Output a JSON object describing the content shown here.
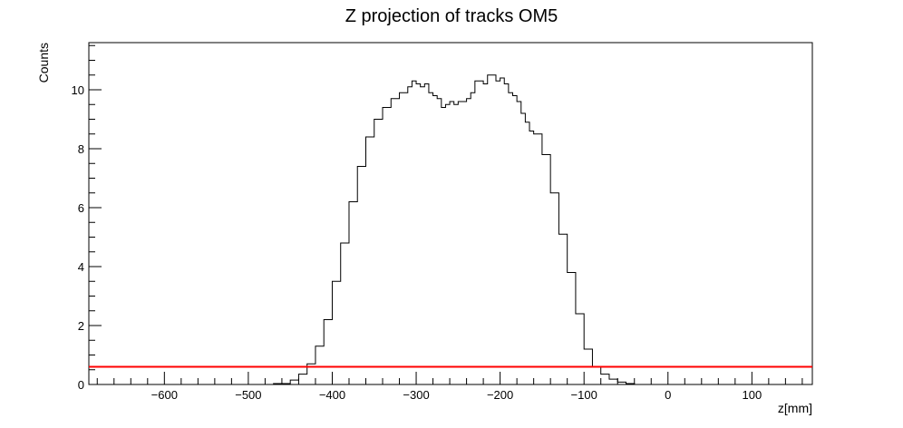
{
  "chart_data": {
    "type": "line",
    "title": "Z projection of tracks OM5",
    "xlabel": "z[mm]",
    "ylabel": "Counts",
    "xlim": [
      -690,
      172
    ],
    "ylim": [
      0,
      11.6
    ],
    "xticks": [
      -600,
      -500,
      -400,
      -300,
      -200,
      -100,
      0,
      100
    ],
    "xtick_labels": [
      "−600",
      "−500",
      "−400",
      "−300",
      "−200",
      "−100",
      "0",
      "100"
    ],
    "yticks": [
      0,
      2,
      4,
      6,
      8,
      10
    ],
    "ytick_labels": [
      "0",
      "2",
      "4",
      "6",
      "8",
      "10"
    ],
    "grid": false,
    "series": [
      {
        "name": "",
        "color": "#000000",
        "x": [
          -500,
          -470,
          -450,
          -440,
          -430,
          -420,
          -410,
          -400,
          -390,
          -380,
          -370,
          -360,
          -350,
          -340,
          -330,
          -320,
          -310,
          -305,
          -300,
          -295,
          -290,
          -285,
          -280,
          -275,
          -270,
          -265,
          -260,
          -255,
          -250,
          -245,
          -240,
          -235,
          -230,
          -225,
          -220,
          -215,
          -210,
          -205,
          -200,
          -195,
          -190,
          -185,
          -180,
          -175,
          -170,
          -165,
          -160,
          -150,
          -140,
          -130,
          -120,
          -110,
          -100,
          -90,
          -80,
          -70,
          -60,
          -50,
          -40,
          -30
        ],
        "y": [
          0.0,
          0.03,
          0.15,
          0.35,
          0.7,
          1.3,
          2.2,
          3.5,
          4.8,
          6.2,
          7.4,
          8.4,
          9.0,
          9.4,
          9.7,
          9.9,
          10.1,
          10.3,
          10.2,
          10.1,
          10.2,
          9.9,
          9.8,
          9.7,
          9.4,
          9.5,
          9.6,
          9.5,
          9.6,
          9.6,
          9.7,
          9.9,
          10.3,
          10.3,
          10.2,
          10.5,
          10.5,
          10.3,
          10.4,
          10.2,
          9.9,
          9.8,
          9.6,
          9.2,
          8.9,
          8.6,
          8.5,
          7.8,
          6.5,
          5.1,
          3.8,
          2.4,
          1.2,
          0.6,
          0.35,
          0.18,
          0.08,
          0.03,
          0.0,
          0.0
        ]
      },
      {
        "name": "",
        "color": "#ff0000",
        "x": [
          -690,
          172
        ],
        "y": [
          0.6,
          0.6
        ]
      }
    ]
  }
}
